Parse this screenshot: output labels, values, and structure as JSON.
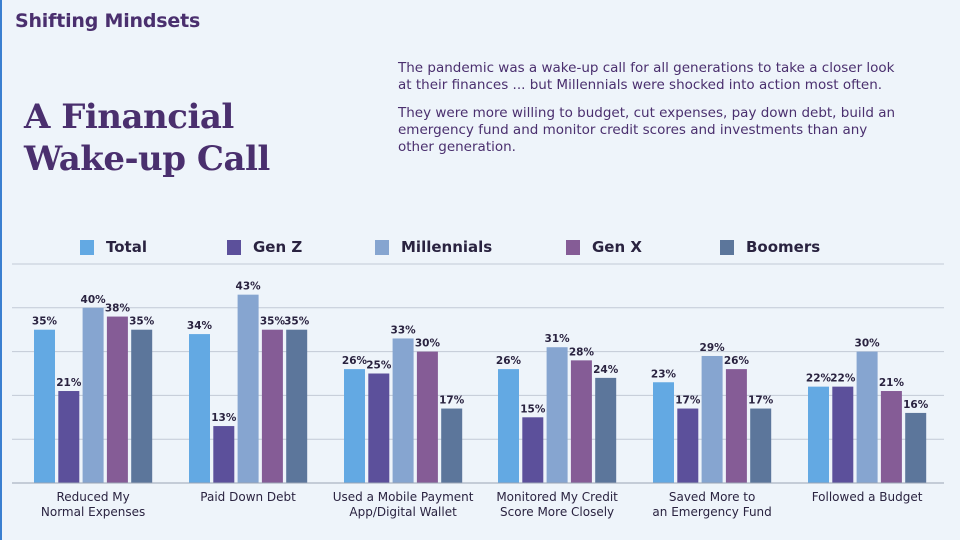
{
  "header": {
    "section_title": "Shifting Mindsets",
    "main_title": "A Financial Wake-up Call",
    "paragraph1": "The pandemic was a wake-up call for all generations to take a closer look at their finances ... but Millennials were shocked into action most often.",
    "paragraph2": "They were more willing to budget, cut expenses, pay down debt, build an emergency fund and monitor credit scores and investments than any other generation."
  },
  "colors": {
    "Total": "#63a9e3",
    "Gen Z": "#5c509b",
    "Millennials": "#86a5d0",
    "Gen X": "#855c96",
    "Boomers": "#5c769b"
  },
  "chart_data": {
    "type": "bar",
    "legend_position": "top",
    "ylim": [
      0,
      50
    ],
    "grid": true,
    "categories": [
      [
        "Reduced My",
        "Normal Expenses"
      ],
      [
        "Paid Down Debt"
      ],
      [
        "Used a Mobile Payment",
        "App/Digital Wallet"
      ],
      [
        "Monitored My Credit",
        "Score More Closely"
      ],
      [
        "Saved More to",
        "an Emergency Fund"
      ],
      [
        "Followed a Budget"
      ]
    ],
    "series": [
      {
        "name": "Total",
        "values": [
          35,
          34,
          26,
          26,
          23,
          22
        ]
      },
      {
        "name": "Gen Z",
        "values": [
          21,
          13,
          25,
          15,
          17,
          22
        ]
      },
      {
        "name": "Millennials",
        "values": [
          40,
          43,
          33,
          31,
          29,
          30
        ]
      },
      {
        "name": "Gen X",
        "values": [
          38,
          35,
          30,
          28,
          26,
          21
        ]
      },
      {
        "name": "Boomers",
        "values": [
          35,
          35,
          17,
          24,
          17,
          16
        ]
      }
    ]
  }
}
